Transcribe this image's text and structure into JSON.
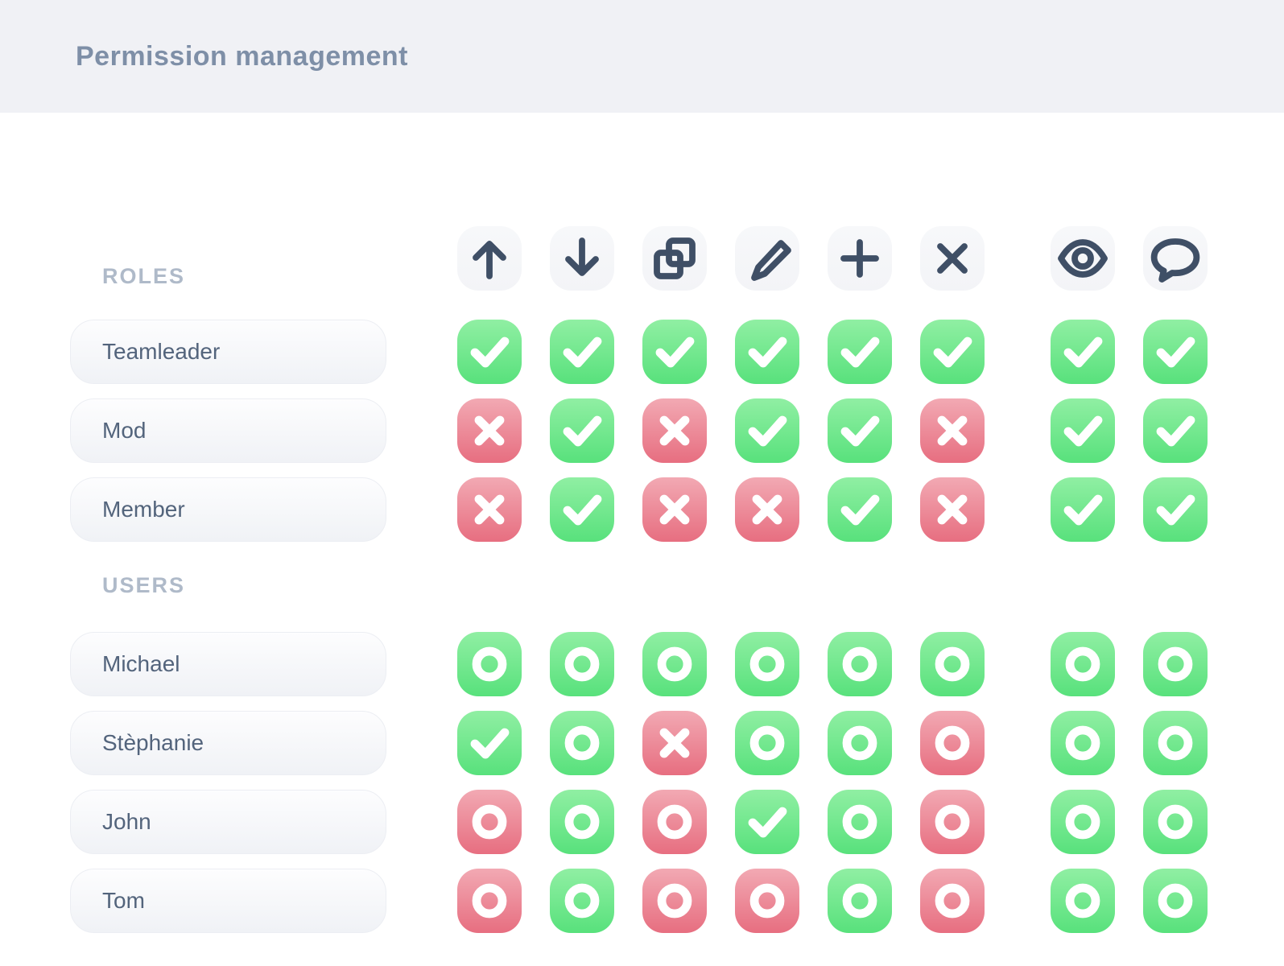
{
  "header": {
    "title": "Permission management"
  },
  "colors": {
    "header_background": "#f0f1f5",
    "allow_green_top": "#90efa3",
    "allow_green_bottom": "#58e17c",
    "deny_red_top": "#f2a9b3",
    "deny_red_bottom": "#e76e80",
    "icon_slate": "#3f4f66",
    "title_text": "#7e8fa7",
    "section_label_text": "#afbac9",
    "row_label_text": "#53647c"
  },
  "columns": {
    "actions": [
      "move-up-icon",
      "move-down-icon",
      "duplicate-icon",
      "edit-icon",
      "add-icon",
      "delete-icon"
    ],
    "extras": [
      "view-icon",
      "comment-icon"
    ]
  },
  "states": {
    "allow": {
      "color": "green",
      "glyph": "check"
    },
    "deny": {
      "color": "red",
      "glyph": "cross"
    },
    "inherit-allow": {
      "color": "green",
      "glyph": "circle"
    },
    "inherit-deny": {
      "color": "red",
      "glyph": "circle"
    }
  },
  "sections": [
    {
      "label": "ROLES",
      "rows": [
        {
          "name": "Teamleader",
          "actions": [
            "allow",
            "allow",
            "allow",
            "allow",
            "allow",
            "allow"
          ],
          "extras": [
            "allow",
            "allow"
          ]
        },
        {
          "name": "Mod",
          "actions": [
            "deny",
            "allow",
            "deny",
            "allow",
            "allow",
            "deny"
          ],
          "extras": [
            "allow",
            "allow"
          ]
        },
        {
          "name": "Member",
          "actions": [
            "deny",
            "allow",
            "deny",
            "deny",
            "allow",
            "deny"
          ],
          "extras": [
            "allow",
            "allow"
          ]
        }
      ]
    },
    {
      "label": "USERS",
      "rows": [
        {
          "name": "Michael",
          "actions": [
            "inherit-allow",
            "inherit-allow",
            "inherit-allow",
            "inherit-allow",
            "inherit-allow",
            "inherit-allow"
          ],
          "extras": [
            "inherit-allow",
            "inherit-allow"
          ]
        },
        {
          "name": "Stèphanie",
          "actions": [
            "allow",
            "inherit-allow",
            "deny",
            "inherit-allow",
            "inherit-allow",
            "inherit-deny"
          ],
          "extras": [
            "inherit-allow",
            "inherit-allow"
          ]
        },
        {
          "name": "John",
          "actions": [
            "inherit-deny",
            "inherit-allow",
            "inherit-deny",
            "allow",
            "inherit-allow",
            "inherit-deny"
          ],
          "extras": [
            "inherit-allow",
            "inherit-allow"
          ]
        },
        {
          "name": "Tom",
          "actions": [
            "inherit-deny",
            "inherit-allow",
            "inherit-deny",
            "inherit-deny",
            "inherit-allow",
            "inherit-deny"
          ],
          "extras": [
            "inherit-allow",
            "inherit-allow"
          ]
        }
      ]
    }
  ]
}
